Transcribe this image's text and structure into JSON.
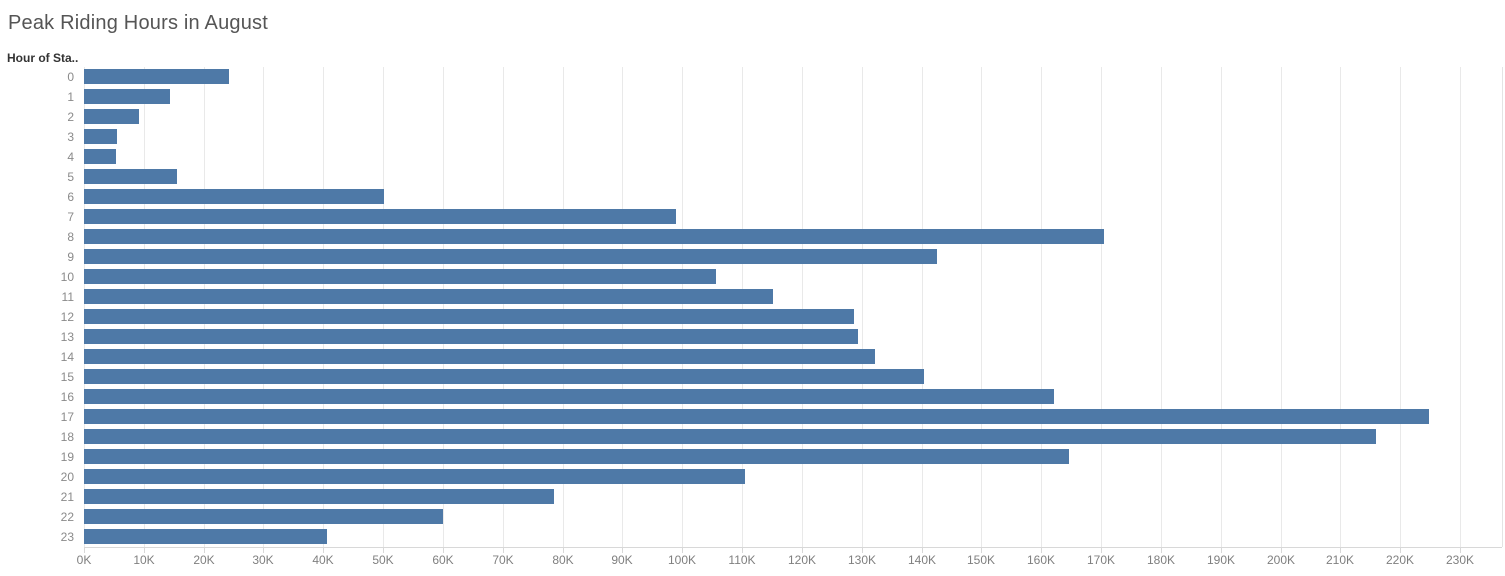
{
  "title": "Peak Riding Hours in August",
  "y_axis": {
    "field_label": "Hour of Sta.."
  },
  "colors": {
    "bar": "#4e79a7",
    "title_text": "#555555",
    "axis_text": "#7f7f7f",
    "gridline": "#e9e9e9"
  },
  "chart_data": {
    "type": "bar",
    "orientation": "horizontal",
    "title": "Peak Riding Hours in August",
    "ylabel": "Hour of Sta..",
    "xlabel": "",
    "categories": [
      "0",
      "1",
      "2",
      "3",
      "4",
      "5",
      "6",
      "7",
      "8",
      "9",
      "10",
      "11",
      "12",
      "13",
      "14",
      "15",
      "16",
      "17",
      "18",
      "19",
      "20",
      "21",
      "22",
      "23"
    ],
    "values": [
      24300,
      14300,
      9200,
      5500,
      5300,
      15500,
      50200,
      98900,
      170500,
      142500,
      105700,
      115100,
      128700,
      129300,
      132300,
      140400,
      162200,
      224800,
      216000,
      164600,
      110500,
      78600,
      60000,
      40700
    ],
    "x_tick_labels": [
      "0K",
      "10K",
      "20K",
      "30K",
      "40K",
      "50K",
      "60K",
      "70K",
      "80K",
      "90K",
      "100K",
      "110K",
      "120K",
      "130K",
      "140K",
      "150K",
      "160K",
      "170K",
      "180K",
      "190K",
      "200K",
      "210K",
      "220K",
      "230K"
    ],
    "x_tick_interval": 10000,
    "xlim": [
      0,
      237000
    ],
    "grid": true,
    "legend": "none",
    "bar_color": "#4e79a7"
  }
}
